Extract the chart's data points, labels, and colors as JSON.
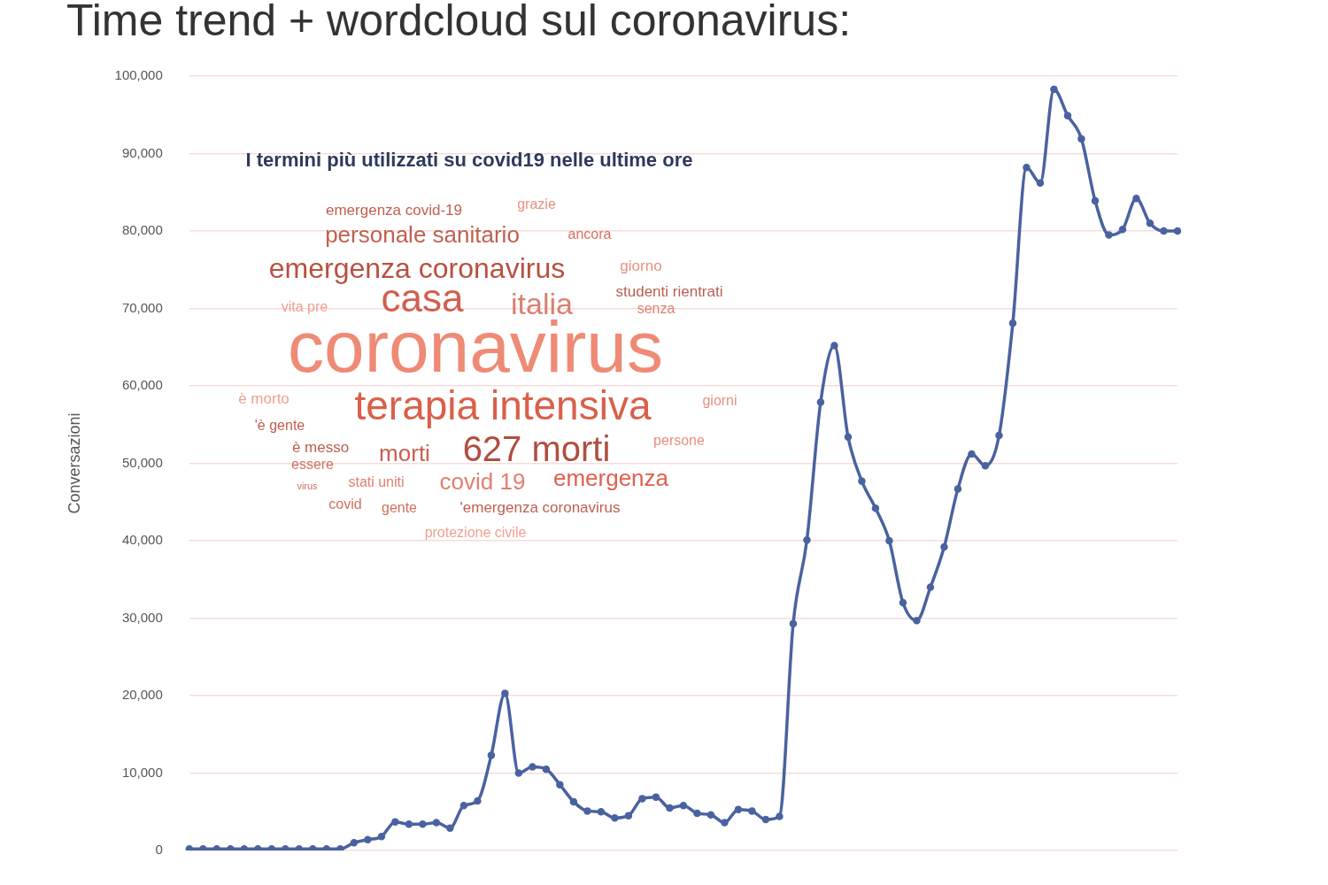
{
  "chart_data": {
    "type": "line",
    "title": "Time trend + wordcloud sul coronavirus:",
    "ylabel": "Conversazioni",
    "categories": [
      null,
      null,
      null,
      null,
      null,
      null,
      null,
      null,
      null,
      null,
      null,
      null,
      null,
      null,
      null,
      null,
      null,
      null,
      null,
      null,
      null,
      null,
      null,
      null,
      null,
      null,
      null,
      null,
      null,
      null,
      null,
      null,
      null,
      null,
      null,
      null,
      null,
      null,
      null,
      null,
      null,
      null,
      null,
      null,
      null,
      null,
      null,
      null,
      null,
      null,
      null,
      null,
      null,
      null,
      null,
      null,
      null,
      null,
      null,
      null,
      null,
      null,
      null,
      null,
      null,
      null,
      null,
      null,
      null,
      null,
      null,
      null,
      null
    ],
    "series": [
      {
        "color": "#4a62a0",
        "values": [
          200,
          200,
          200,
          200,
          200,
          200,
          200,
          200,
          200,
          200,
          200,
          200,
          1000,
          1400,
          1800,
          3700,
          3400,
          3400,
          3600,
          2900,
          5800,
          6400,
          12300,
          20300,
          10000,
          10800,
          10500,
          8500,
          6300,
          5100,
          5000,
          4200,
          4500,
          6700,
          6900,
          5500,
          5800,
          4800,
          4600,
          3600,
          5300,
          5100,
          4000,
          4400,
          29300,
          40100,
          57900,
          65200,
          53400,
          47700,
          44200,
          40000,
          32000,
          29700,
          34000,
          39200,
          46700,
          51200,
          49700,
          53600,
          68100,
          88200,
          86200,
          98300,
          94900,
          91900,
          83900,
          79500,
          80200,
          84200,
          81000,
          80000,
          80000
        ]
      }
    ],
    "ylim": [
      0,
      100000
    ],
    "yticks": [
      0,
      {
        "value": 10000,
        "label": "10,000"
      },
      {
        "value": 20000,
        "label": "20,000"
      },
      {
        "value": 30000,
        "label": "30,000"
      },
      {
        "value": 40000,
        "label": "40,000"
      },
      {
        "value": 50000,
        "label": "50,000"
      },
      {
        "value": 60000,
        "label": "60,000"
      },
      {
        "value": 70000,
        "label": "70,000"
      },
      {
        "value": 80000,
        "label": "80,000"
      },
      {
        "value": 90000,
        "label": "90,000"
      },
      {
        "value": 100000,
        "label": "100,000"
      }
    ],
    "grid": "y",
    "tick_labels": "y",
    "marker": "circle",
    "line_style": "solid",
    "legend": false,
    "annotations": [
      "I termini più utilizzati su covid19 nelle ultime ore",
      "emergenza covid-19",
      "grazie",
      "personale sanitario",
      "ancora",
      "emergenza coronavirus",
      "giorno",
      "casa",
      "italia",
      "studenti rientrati",
      "vita pre",
      "senza",
      "coronavirus",
      "è morto",
      "terapia intensiva",
      "giorni",
      "'è gente",
      "è messo",
      "persone",
      "morti",
      "627 morti",
      "essere",
      "virus",
      "stati uniti",
      "covid 19",
      "emergenza",
      "covid",
      "gente",
      "'emergenza coronavirus",
      "protezione civile"
    ]
  }
}
